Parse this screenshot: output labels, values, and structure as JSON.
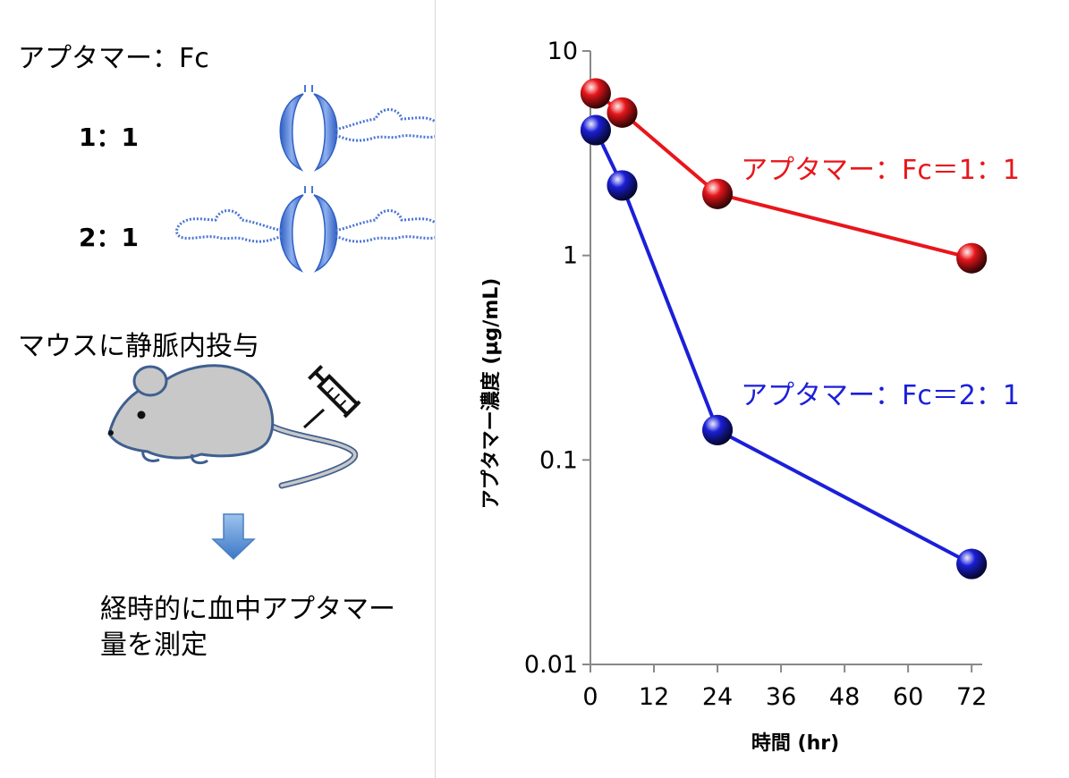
{
  "left_panel": {
    "title": "アプタマー：Fc",
    "ratio_1": "1：1",
    "ratio_2": "2：1",
    "injection_label": "マウスに静脈内投与",
    "measure_label": "経時的に血中アプタマー量を測定",
    "colors": {
      "construct": "#4a74d6",
      "mouse_fill": "#c8c8c8",
      "mouse_stroke": "#3f5f8f",
      "arrow": "#5b9bd5"
    }
  },
  "chart_data": {
    "type": "line",
    "xlabel": "時間 (hr)",
    "ylabel": "アプタマー濃度 (µg/mL)",
    "y_scale": "log",
    "ylim": [
      0.01,
      10
    ],
    "xlim": [
      0,
      74
    ],
    "x_ticks": [
      0,
      12,
      24,
      36,
      48,
      60,
      72
    ],
    "y_ticks": [
      0.01,
      0.1,
      1,
      10
    ],
    "y_tick_labels": [
      "0.01",
      "0.1",
      "1",
      "10"
    ],
    "grid": false,
    "series": [
      {
        "name": "アプタマー：Fc＝1：1",
        "color": "#e8161b",
        "x": [
          1,
          6,
          24,
          72
        ],
        "y": [
          6.2,
          5.0,
          2.0,
          0.97
        ]
      },
      {
        "name": "アプタマー：Fc＝2：1",
        "color": "#1b1fd8",
        "x": [
          1,
          6,
          24,
          72
        ],
        "y": [
          4.1,
          2.2,
          0.14,
          0.031
        ]
      }
    ]
  }
}
